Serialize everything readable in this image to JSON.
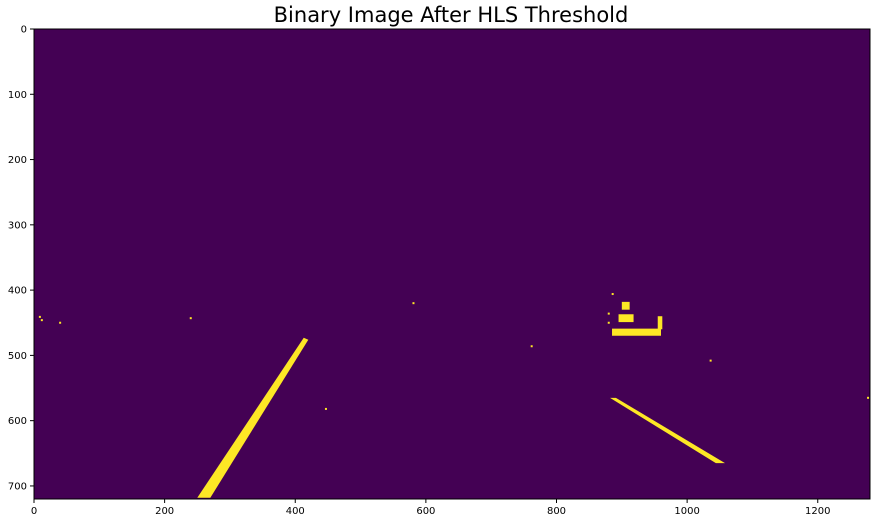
{
  "chart_data": {
    "type": "heatmap",
    "title": "Binary Image After HLS Threshold",
    "xlabel": "",
    "ylabel": "",
    "xlim": [
      0,
      1280
    ],
    "ylim": [
      720,
      0
    ],
    "x_ticks": [
      0,
      200,
      400,
      600,
      800,
      1000,
      1200
    ],
    "y_ticks": [
      0,
      100,
      200,
      300,
      400,
      500,
      600,
      700
    ],
    "grid": false,
    "colormap": "viridis",
    "background_value": 0,
    "foreground_value": 1,
    "colors": {
      "background": "#440154",
      "foreground": "#fde725"
    },
    "features": {
      "left_lane_line": [
        [
          250,
          718
        ],
        [
          270,
          718
        ],
        [
          420,
          476
        ],
        [
          413,
          473
        ]
      ],
      "right_lane_line": [
        [
          882,
          565
        ],
        [
          891,
          565
        ],
        [
          1058,
          665
        ],
        [
          1044,
          665
        ]
      ],
      "specks": [
        [
          9,
          441
        ],
        [
          12,
          446
        ],
        [
          40,
          450
        ],
        [
          240,
          443
        ],
        [
          447,
          582
        ],
        [
          581,
          420
        ],
        [
          762,
          486
        ],
        [
          880,
          436
        ],
        [
          880,
          450
        ],
        [
          886,
          406
        ],
        [
          1036,
          508
        ],
        [
          1277,
          565
        ]
      ],
      "vehicle_blobs": [
        [
          [
            900,
            418
          ],
          [
            912,
            418
          ],
          [
            912,
            430
          ],
          [
            900,
            430
          ]
        ],
        [
          [
            895,
            437
          ],
          [
            918,
            437
          ],
          [
            918,
            449
          ],
          [
            895,
            449
          ]
        ],
        [
          [
            885,
            459
          ],
          [
            960,
            459
          ],
          [
            960,
            470
          ],
          [
            885,
            470
          ]
        ],
        [
          [
            955,
            440
          ],
          [
            962,
            440
          ],
          [
            962,
            460
          ],
          [
            955,
            460
          ]
        ]
      ]
    }
  }
}
